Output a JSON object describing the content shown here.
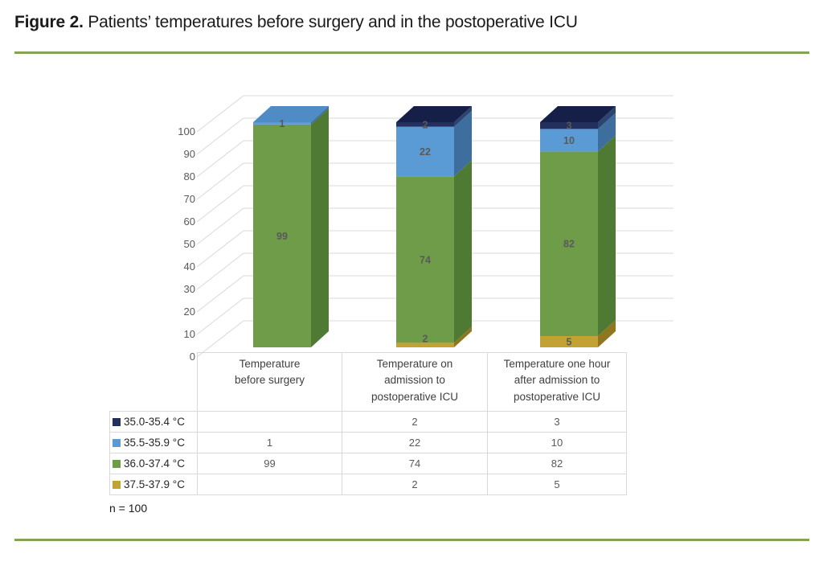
{
  "header": {
    "figure_label": "Figure 2.",
    "title_rest": " Patients’ temperatures before surgery and in the postoperative ICU"
  },
  "chart_data": {
    "type": "bar",
    "subtype": "3d-stacked-column",
    "categories": [
      "Temperature\nbefore surgery",
      "Temperature on\nadmission to\npostoperative ICU",
      "Temperature one hour\nafter admission to\npostoperative ICU"
    ],
    "series": [
      {
        "name": "35.0-35.4 °C",
        "values": [
          null,
          2,
          3
        ],
        "colors": {
          "front": "#232F5D",
          "side": "#2B4470",
          "top": "#161F48"
        }
      },
      {
        "name": "35.5-35.9 °C",
        "values": [
          1,
          22,
          10
        ],
        "colors": {
          "front": "#5B9BD5",
          "side": "#3E6E9D",
          "top": "#4F8BC4"
        }
      },
      {
        "name": "36.0-37.4 °C",
        "values": [
          99,
          74,
          82
        ],
        "colors": {
          "front": "#6F9C49",
          "side": "#4E7A33",
          "top": "#88B25C"
        }
      },
      {
        "name": "37.5-37.9 °C",
        "values": [
          null,
          2,
          5
        ],
        "colors": {
          "front": "#C2A233",
          "side": "#8E771F",
          "top": "#D4B84E"
        }
      }
    ],
    "stack_bottom_to_top": [
      3,
      2,
      1,
      0
    ],
    "ylim": [
      0,
      100
    ],
    "yticks": [
      0,
      10,
      20,
      30,
      40,
      50,
      60,
      70,
      80,
      90,
      100
    ],
    "grid": true,
    "legend_position": "data-table-left"
  },
  "table": {
    "rows": [
      {
        "cells": [
          "",
          "2",
          "3"
        ]
      },
      {
        "cells": [
          "1",
          "22",
          "10"
        ]
      },
      {
        "cells": [
          "99",
          "74",
          "82"
        ]
      },
      {
        "cells": [
          "",
          "2",
          "5"
        ]
      }
    ]
  },
  "footer": {
    "note": "n = 100"
  },
  "colors": {
    "rule": "#83A355",
    "grid": "#D9D9D9",
    "tick_text": "#595959",
    "value_label_text": "#595959",
    "category_text": "#404040",
    "table_border": "#D9D9D9",
    "legend_text": "#262626",
    "title_text": "#1A1A1A"
  }
}
